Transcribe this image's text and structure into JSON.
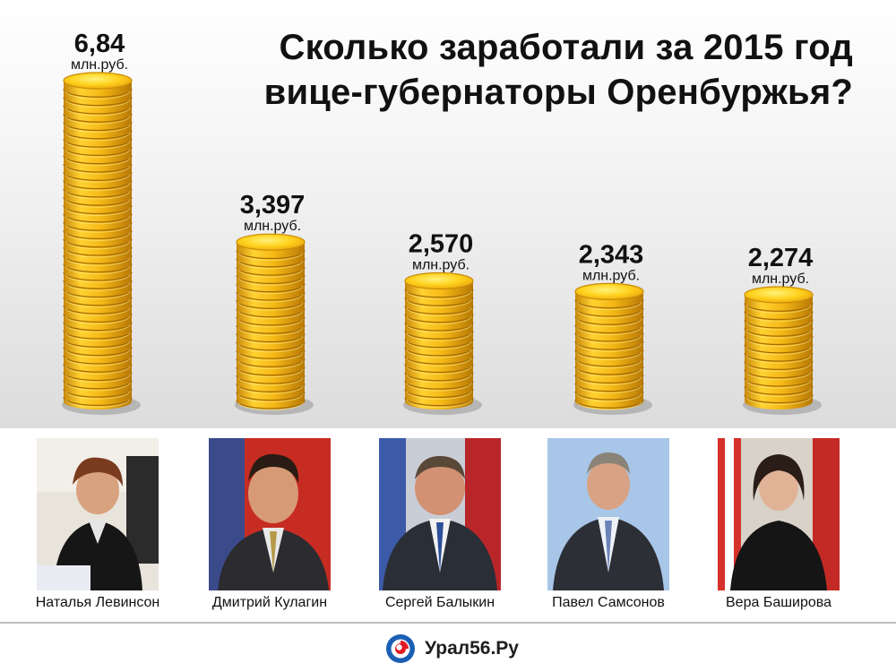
{
  "title": {
    "line1": "Сколько заработали за 2015 год",
    "line2": "вице-губернаторы Оренбуржья?"
  },
  "chart_data": {
    "type": "bar",
    "unit": "млн.руб.",
    "categories": [
      "Наталья Левинсон",
      "Дмитрий Кулагин",
      "Сергей Балыкин",
      "Павел Самсонов",
      "Вера Баширова"
    ],
    "values": [
      6.84,
      3.397,
      2.57,
      2.343,
      2.274
    ],
    "value_labels": [
      "6,84",
      "3,397",
      "2,570",
      "2,343",
      "2,274"
    ],
    "ylim": [
      0,
      6.84
    ]
  },
  "colors": {
    "coin_light": "#ffe24a",
    "coin_mid": "#f2b614",
    "coin_dark": "#b87b05",
    "logo_blue": "#1a5fb4",
    "logo_red": "#e01b24"
  },
  "people": [
    {
      "name": "Наталья Левинсон"
    },
    {
      "name": "Дмитрий Кулагин"
    },
    {
      "name": "Сергей Балыкин"
    },
    {
      "name": "Павел Самсонов"
    },
    {
      "name": "Вера Баширова"
    }
  ],
  "footer": {
    "logo_text": "Урал56.Ру"
  }
}
